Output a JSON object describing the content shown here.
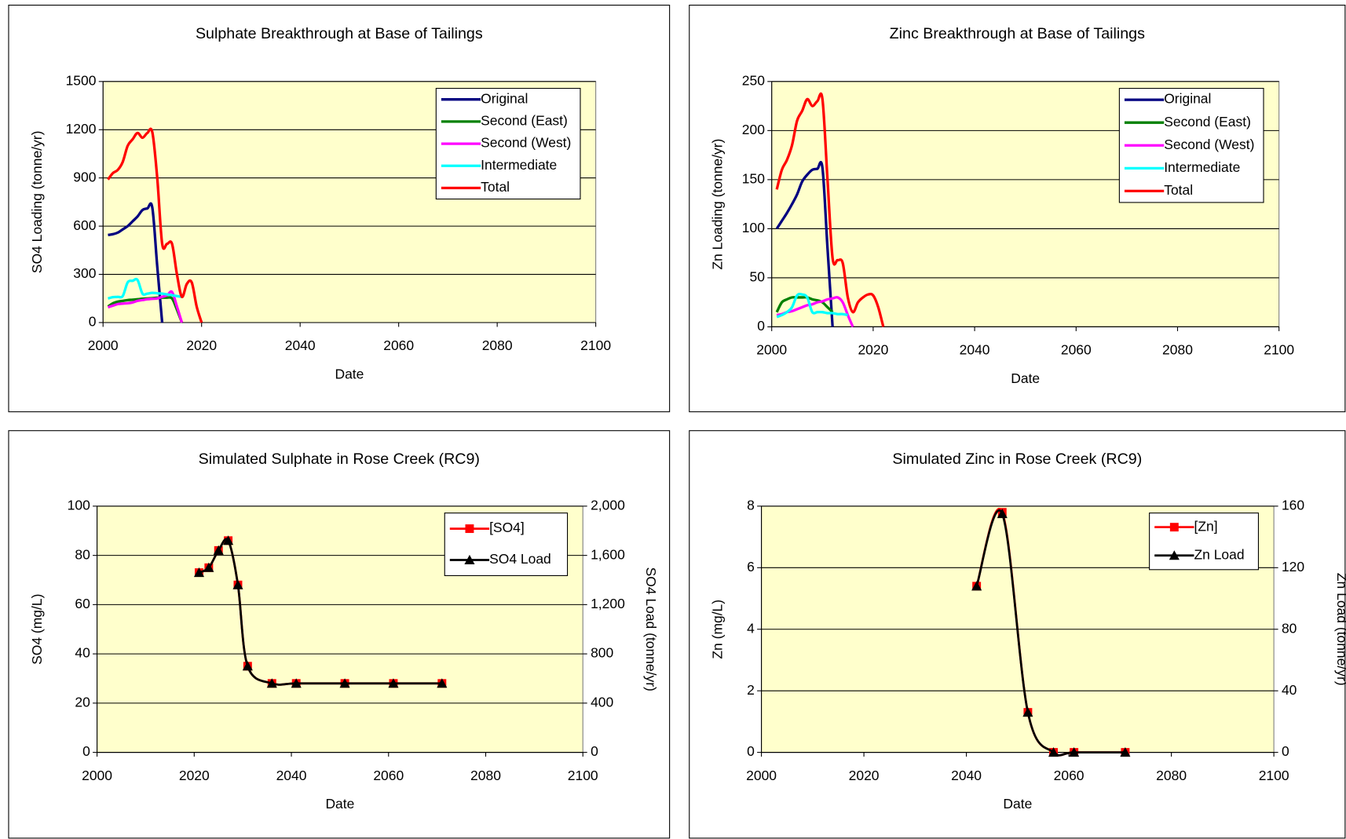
{
  "chart_data": [
    {
      "type": "line",
      "title": "Sulphate Breakthrough at Base of Tailings",
      "x_label": "Date",
      "y_label": "SO4 Loading (tonne/yr)",
      "x": [
        2001,
        2002,
        2003,
        2004,
        2005,
        2006,
        2007,
        2008,
        2009,
        2010,
        2011,
        2012,
        2013,
        2014,
        2015,
        2016,
        2017,
        2018,
        2019,
        2020
      ],
      "xlim": [
        2000,
        2100
      ],
      "xticks": [
        2000,
        2020,
        2040,
        2060,
        2080,
        2100
      ],
      "ylim": [
        0,
        1500
      ],
      "yticks": [
        0,
        300,
        600,
        900,
        1200,
        1500
      ],
      "grid": true,
      "legend": "upper right",
      "background": "#ffffcc",
      "series": [
        {
          "name": "Original",
          "color": "#000080",
          "values": [
            545,
            550,
            560,
            580,
            600,
            630,
            660,
            700,
            710,
            715,
            350,
            0,
            null,
            null,
            null,
            null,
            null,
            null,
            null,
            null
          ]
        },
        {
          "name": "Second (East)",
          "color": "#008000",
          "values": [
            100,
            120,
            130,
            135,
            140,
            142,
            145,
            148,
            150,
            152,
            155,
            155,
            155,
            150,
            80,
            0,
            null,
            null,
            null,
            null
          ]
        },
        {
          "name": "Second (West)",
          "color": "#ff00ff",
          "values": [
            95,
            105,
            115,
            118,
            120,
            125,
            135,
            140,
            145,
            148,
            150,
            160,
            170,
            190,
            100,
            0,
            null,
            null,
            null,
            null
          ]
        },
        {
          "name": "Intermediate",
          "color": "#00ffff",
          "values": [
            150,
            158,
            160,
            165,
            250,
            260,
            265,
            180,
            180,
            185,
            182,
            180,
            175,
            170,
            165,
            160,
            null,
            null,
            null,
            null
          ]
        },
        {
          "name": "Total",
          "color": "#ff0000",
          "values": [
            890,
            930,
            950,
            1000,
            1100,
            1140,
            1180,
            1150,
            1180,
            1185,
            900,
            490,
            490,
            490,
            300,
            160,
            240,
            250,
            100,
            0
          ]
        }
      ]
    },
    {
      "type": "line",
      "title": "Zinc Breakthrough at Base of Tailings",
      "x_label": "Date",
      "y_label": "Zn Loading (tonne/yr)",
      "x": [
        2001,
        2002,
        2003,
        2004,
        2005,
        2006,
        2007,
        2008,
        2009,
        2010,
        2011,
        2012,
        2013,
        2014,
        2015,
        2016,
        2017,
        2018,
        2019,
        2020,
        2021,
        2022
      ],
      "xlim": [
        2000,
        2100
      ],
      "xticks": [
        2000,
        2020,
        2040,
        2060,
        2080,
        2100
      ],
      "ylim": [
        0,
        250
      ],
      "yticks": [
        0,
        50,
        100,
        150,
        200,
        250
      ],
      "grid": true,
      "legend": "upper right",
      "background": "#ffffcc",
      "series": [
        {
          "name": "Original",
          "color": "#000080",
          "values": [
            100,
            108,
            116,
            125,
            135,
            148,
            155,
            160,
            161,
            162,
            80,
            0,
            null,
            null,
            null,
            null,
            null,
            null,
            null,
            null,
            null,
            null
          ]
        },
        {
          "name": "Second (East)",
          "color": "#008000",
          "values": [
            15,
            25,
            28,
            30,
            30,
            30,
            30,
            28,
            27,
            25,
            20,
            15,
            null,
            null,
            null,
            null,
            null,
            null,
            null,
            null,
            null,
            null
          ]
        },
        {
          "name": "Second (West)",
          "color": "#ff00ff",
          "values": [
            12,
            13,
            15,
            16,
            18,
            20,
            22,
            23,
            25,
            26,
            28,
            29,
            30,
            25,
            12,
            0,
            null,
            null,
            null,
            null,
            null,
            null
          ]
        },
        {
          "name": "Intermediate",
          "color": "#00ffff",
          "values": [
            10,
            12,
            15,
            20,
            32,
            33,
            30,
            15,
            15,
            15,
            14,
            14,
            13,
            13,
            12,
            null,
            null,
            null,
            null,
            null,
            null,
            null
          ]
        },
        {
          "name": "Total",
          "color": "#ff0000",
          "values": [
            140,
            160,
            170,
            185,
            210,
            220,
            232,
            225,
            230,
            232,
            150,
            70,
            68,
            65,
            30,
            15,
            25,
            30,
            33,
            32,
            20,
            0
          ]
        }
      ]
    },
    {
      "type": "line",
      "title": "Simulated Sulphate in Rose Creek (RC9)",
      "x_label": "Date",
      "y_label": "SO4 (mg/L)",
      "y2_label": "SO4 Load (tonne/yr)",
      "x": [
        2021,
        2023,
        2025,
        2027,
        2029,
        2031,
        2036,
        2041,
        2051,
        2061,
        2071
      ],
      "xlim": [
        2000,
        2100
      ],
      "xticks": [
        2000,
        2020,
        2040,
        2060,
        2080,
        2100
      ],
      "ylim": [
        0,
        100
      ],
      "yticks": [
        0,
        20,
        40,
        60,
        80,
        100
      ],
      "y2lim": [
        0,
        2000
      ],
      "y2ticks": [
        0,
        400,
        800,
        {
          "value": 1200,
          "label": "1,200"
        },
        {
          "value": 1600,
          "label": "1,600"
        },
        {
          "value": 2000,
          "label": "2,000"
        }
      ],
      "grid": true,
      "legend": "upper right",
      "background": "#ffffcc",
      "series": [
        {
          "name": "[SO4]",
          "color": "#ff0000",
          "marker": "square",
          "values": [
            73,
            75,
            82,
            86,
            68,
            35,
            28,
            28,
            28,
            28,
            28
          ]
        },
        {
          "name": "SO4 Load",
          "color": "#000000",
          "marker": "triangle",
          "axis": "y2",
          "values": [
            1460,
            1500,
            1640,
            1720,
            1360,
            700,
            560,
            560,
            560,
            560,
            560
          ]
        }
      ]
    },
    {
      "type": "line",
      "title": "Simulated Zinc in Rose Creek (RC9)",
      "x_label": "Date",
      "y_label": "Zn (mg/L)",
      "y2_label": "Zn Load (tonne/yr)",
      "x": [
        2042,
        2047,
        2052,
        2057,
        2061,
        2071
      ],
      "xlim": [
        2000,
        2100
      ],
      "xticks": [
        2000,
        2020,
        2040,
        2060,
        2080,
        2100
      ],
      "ylim": [
        0,
        8
      ],
      "yticks": [
        0,
        2,
        4,
        6,
        8
      ],
      "y2lim": [
        0,
        160
      ],
      "y2ticks": [
        0,
        40,
        80,
        120,
        160
      ],
      "grid": true,
      "legend": "upper right",
      "background": "#ffffcc",
      "series": [
        {
          "name": "[Zn]",
          "color": "#ff0000",
          "marker": "square",
          "values": [
            5.4,
            7.8,
            1.3,
            0,
            0,
            0
          ]
        },
        {
          "name": "Zn Load",
          "color": "#000000",
          "marker": "triangle",
          "axis": "y2",
          "values": [
            108,
            155,
            26,
            0,
            0,
            0
          ]
        }
      ]
    }
  ]
}
